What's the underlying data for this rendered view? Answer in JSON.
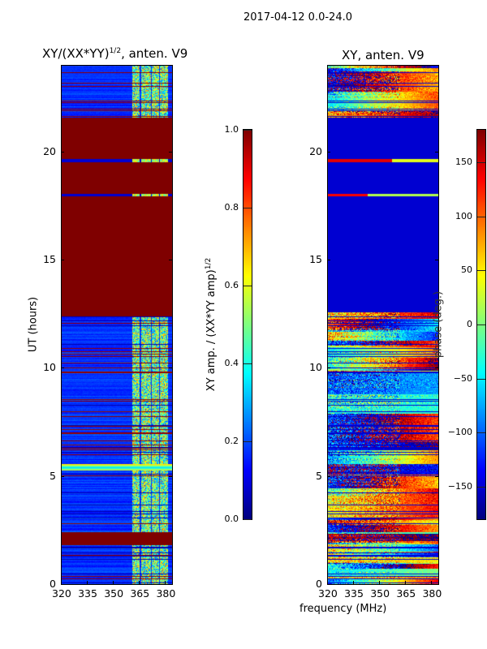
{
  "suptitle": "2017-04-12 0.0-24.0",
  "chart_data": [
    {
      "type": "heatmap",
      "title": "XY/(XX*YY)",
      "title_sup": "1/2",
      "title_suffix": ", anten. V9",
      "xlabel": "frequency (MHz)",
      "ylabel": "UT (hours)",
      "xlim": [
        320,
        384
      ],
      "ylim": [
        0,
        24
      ],
      "xticks": [
        "320",
        "335",
        "350",
        "365",
        "380"
      ],
      "xtick_values": [
        320,
        335,
        350,
        365,
        380
      ],
      "yticks": [
        "0",
        "5",
        "10",
        "15",
        "20"
      ],
      "ytick_values": [
        0,
        5,
        10,
        15,
        20
      ],
      "colormap": "jet",
      "clim": [
        0,
        1
      ],
      "colorbar_label": "XY amp. / (XX*YY amp)",
      "colorbar_label_sup": "1/2",
      "colorbar_ticks": [
        "0.0",
        "0.2",
        "0.4",
        "0.6",
        "0.8",
        "1.0"
      ],
      "colorbar_tick_values": [
        0,
        0.2,
        0.4,
        0.6,
        0.8,
        1.0
      ],
      "saturated_bands_hours": [
        [
          12.4,
          19.55
        ],
        [
          19.75,
          17.95
        ],
        [
          18.05,
          21.6
        ],
        [
          1.8,
          2.4
        ],
        [
          22.4,
          22.7
        ],
        [
          0,
          0.05
        ]
      ],
      "active_freq_range_mhz": [
        360,
        382
      ]
    },
    {
      "type": "heatmap",
      "title": "XY, anten. V9",
      "xlim": [
        320,
        384
      ],
      "ylim": [
        0,
        24
      ],
      "xticks": [
        "320",
        "335",
        "350",
        "365",
        "380"
      ],
      "xtick_values": [
        320,
        335,
        350,
        365,
        380
      ],
      "yticks": [
        "0",
        "5",
        "10",
        "15",
        "20"
      ],
      "ytick_values": [
        0,
        5,
        10,
        15,
        20
      ],
      "colormap": "jet",
      "clim": [
        -180,
        180
      ],
      "colorbar_label": "phase (deg.)",
      "colorbar_ticks": [
        "−150",
        "−100",
        "−50",
        "0",
        "50",
        "100",
        "150"
      ],
      "colorbar_tick_values": [
        -150,
        -100,
        -50,
        0,
        50,
        100,
        150
      ],
      "flagged_band_hours": [
        12.6,
        21.6
      ]
    }
  ]
}
